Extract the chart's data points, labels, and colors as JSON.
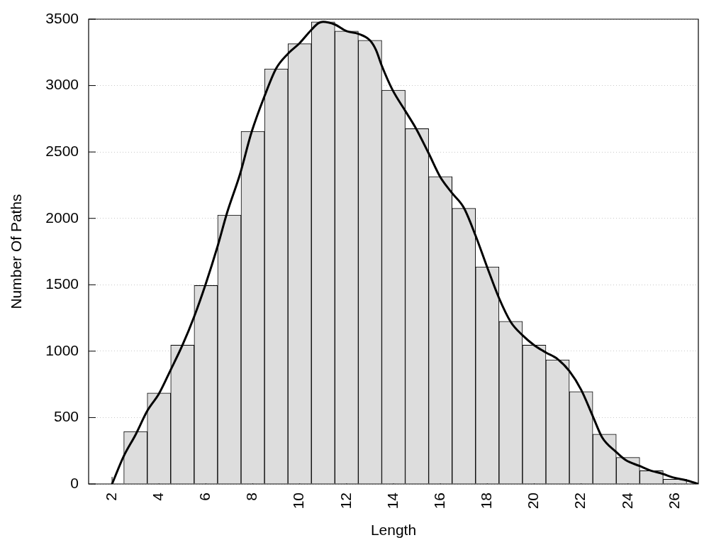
{
  "chart_data": {
    "type": "histogram",
    "xlabel": "Length",
    "ylabel": "Number Of Paths",
    "xlim": [
      1,
      27
    ],
    "xticks": [
      2,
      4,
      6,
      8,
      10,
      12,
      14,
      16,
      18,
      20,
      22,
      24,
      26
    ],
    "ylim": [
      0,
      3500
    ],
    "yticks": [
      0,
      500,
      1000,
      1500,
      2000,
      2500,
      3000,
      3500
    ],
    "grid": "y",
    "bins": [
      2.5,
      3.5,
      4.5,
      5.5,
      6.5,
      7.5,
      8.5,
      9.5,
      10.5,
      11.5,
      12.5,
      13.5,
      14.5,
      15.5,
      16.5,
      17.5,
      18.5,
      19.5,
      20.5,
      21.5,
      22.5,
      23.5,
      24.5,
      25.5,
      26.5
    ],
    "series": [
      {
        "color": "#dddddd",
        "values": [
          395,
          685,
          1045,
          1495,
          2025,
          2655,
          3125,
          3315,
          3480,
          3410,
          3340,
          2965,
          2675,
          2315,
          2075,
          1635,
          1225,
          1045,
          935,
          695,
          375,
          200,
          100,
          35
        ]
      },
      {
        "type": "line",
        "color": "#000000",
        "x": [
          2,
          2.5,
          3,
          3.5,
          4,
          4.5,
          5,
          5.5,
          6,
          6.5,
          6.9,
          7.45,
          7.95,
          8.5,
          9,
          9.5,
          10,
          10.5,
          10.8,
          11,
          11.5,
          12,
          12.5,
          13,
          13.25,
          13.5,
          13.95,
          14.5,
          14.95,
          15.5,
          16,
          16.5,
          17,
          17.5,
          18,
          18.5,
          19,
          19.5,
          20,
          20.5,
          21,
          21.5,
          22,
          22.5,
          22.9,
          23.5,
          23.9,
          24.5,
          24.9,
          25.5,
          25.9,
          26.5,
          27
        ],
        "values": [
          0,
          210,
          370,
          550,
          680,
          860,
          1045,
          1260,
          1510,
          1790,
          2040,
          2330,
          2650,
          2920,
          3130,
          3240,
          3320,
          3420,
          3470,
          3480,
          3460,
          3410,
          3390,
          3340,
          3270,
          3150,
          2970,
          2810,
          2680,
          2490,
          2310,
          2190,
          2080,
          1870,
          1630,
          1400,
          1220,
          1120,
          1045,
          990,
          940,
          850,
          710,
          510,
          350,
          240,
          180,
          135,
          105,
          75,
          50,
          27,
          0
        ]
      }
    ]
  }
}
